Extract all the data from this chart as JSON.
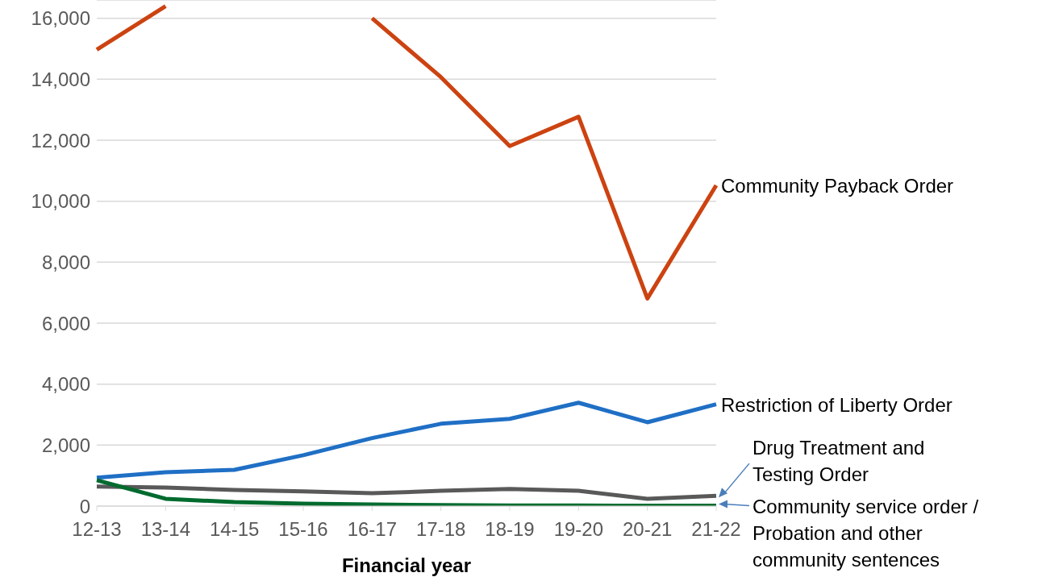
{
  "chart_data": {
    "type": "line",
    "xlabel": "Financial year",
    "categories": [
      "12-13",
      "13-14",
      "14-15",
      "15-16",
      "16-17",
      "17-18",
      "18-19",
      "19-20",
      "20-21",
      "21-22"
    ],
    "series": [
      {
        "name": "Community Payback Order",
        "color": "#cc4311",
        "values": [
          14970,
          16400,
          null,
          null,
          16000,
          14070,
          11810,
          12770,
          6810,
          10520
        ]
      },
      {
        "name": "Restriction of Liberty Order",
        "color": "#1f6fc5",
        "values": [
          930,
          1110,
          1190,
          1670,
          2230,
          2700,
          2860,
          3390,
          2750,
          3340
        ]
      },
      {
        "name": "Drug Treatment and Testing Order",
        "color": "#595959",
        "values": [
          640,
          610,
          530,
          480,
          420,
          500,
          560,
          500,
          240,
          340
        ]
      },
      {
        "name": "Community service order / Probation and other community sentences",
        "color": "#006b2e",
        "values": [
          850,
          240,
          130,
          80,
          50,
          30,
          20,
          20,
          10,
          10
        ]
      }
    ],
    "ylim": [
      0,
      16600
    ],
    "yticks": [
      0,
      {
        "value": 2000,
        "label": "2,000"
      },
      {
        "value": 4000,
        "label": "4,000"
      },
      {
        "value": 6000,
        "label": "6,000"
      },
      {
        "value": 8000,
        "label": "8,000"
      },
      {
        "value": 10000,
        "label": "10,000"
      },
      {
        "value": 12000,
        "label": "12,000"
      },
      {
        "value": 14000,
        "label": "14,000"
      },
      {
        "value": 16000,
        "label": "16,000"
      }
    ],
    "grid": "y",
    "legend": "right"
  }
}
